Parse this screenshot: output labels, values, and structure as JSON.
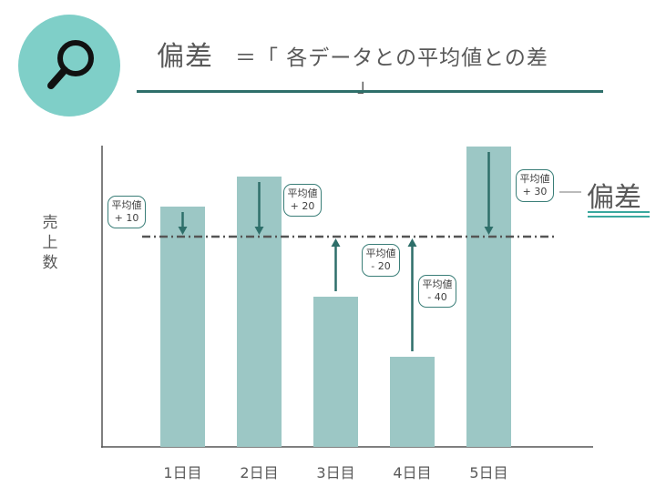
{
  "title": {
    "main": "偏差",
    "rest": "＝「 各データとの平均値との差",
    "bracket_close": "」"
  },
  "icon": "search-icon",
  "colors": {
    "bar": "#9cc7c5",
    "arrow": "#2e6f6a",
    "icon_circle": "#7fcfc8",
    "mean_line": "#555555"
  },
  "deviation_label": "偏差",
  "chart_data": {
    "type": "bar",
    "categories": [
      "1日目",
      "2日目",
      "3日目",
      "4日目",
      "5日目"
    ],
    "values": [
      80,
      90,
      50,
      30,
      100
    ],
    "mean": 70,
    "ylabel": "売上数",
    "ylim": [
      0,
      100
    ],
    "deviations": [
      {
        "label": "平均値",
        "value": "+ 10"
      },
      {
        "label": "平均値",
        "value": "+ 20"
      },
      {
        "label": "平均値",
        "value": "- 20"
      },
      {
        "label": "平均値",
        "value": "- 40"
      },
      {
        "label": "平均値",
        "value": "+ 30"
      }
    ]
  }
}
